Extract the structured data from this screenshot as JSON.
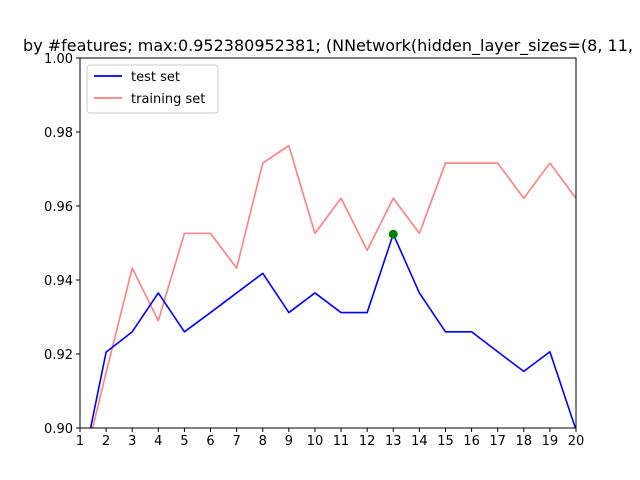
{
  "chart_data": {
    "type": "line",
    "title": "by #features; max:0.952380952381; (NNetwork(hidden_layer_sizes=(8, 11,",
    "xlabel": "",
    "ylabel": "",
    "xlim": [
      1,
      20
    ],
    "ylim": [
      0.9,
      1.0
    ],
    "x_ticks": [
      "1",
      "2",
      "3",
      "4",
      "5",
      "6",
      "7",
      "8",
      "9",
      "10",
      "11",
      "12",
      "13",
      "14",
      "15",
      "16",
      "17",
      "18",
      "19",
      "20"
    ],
    "y_ticks": [
      "0.90",
      "0.92",
      "0.94",
      "0.96",
      "0.98",
      "1.00"
    ],
    "grid": false,
    "legend_position": "top-left",
    "series": [
      {
        "name": "test set",
        "color": "#0000ff",
        "x": [
          1,
          2,
          3,
          4,
          5,
          6,
          7,
          8,
          9,
          10,
          11,
          12,
          13,
          14,
          15,
          16,
          17,
          18,
          19,
          20
        ],
        "values": [
          0.886,
          0.9205,
          0.926,
          0.9365,
          0.926,
          0.9312,
          0.9365,
          0.9418,
          0.9312,
          0.9365,
          0.9312,
          0.9312,
          0.9524,
          0.9365,
          0.926,
          0.926,
          0.9206,
          0.9153,
          0.9206,
          0.8995
        ]
      },
      {
        "name": "training set",
        "color": "#ff8080",
        "x": [
          1,
          2,
          3,
          4,
          5,
          6,
          7,
          8,
          9,
          10,
          11,
          12,
          13,
          14,
          15,
          16,
          17,
          18,
          19,
          20
        ],
        "values": [
          0.886,
          0.915,
          0.9432,
          0.929,
          0.9526,
          0.9526,
          0.9432,
          0.9716,
          0.9763,
          0.9526,
          0.9621,
          0.948,
          0.9621,
          0.9526,
          0.9716,
          0.9716,
          0.9716,
          0.9621,
          0.9716,
          0.9621
        ]
      }
    ],
    "max_marker": {
      "x": 13,
      "y": 0.952380952381,
      "color": "#008000"
    }
  }
}
